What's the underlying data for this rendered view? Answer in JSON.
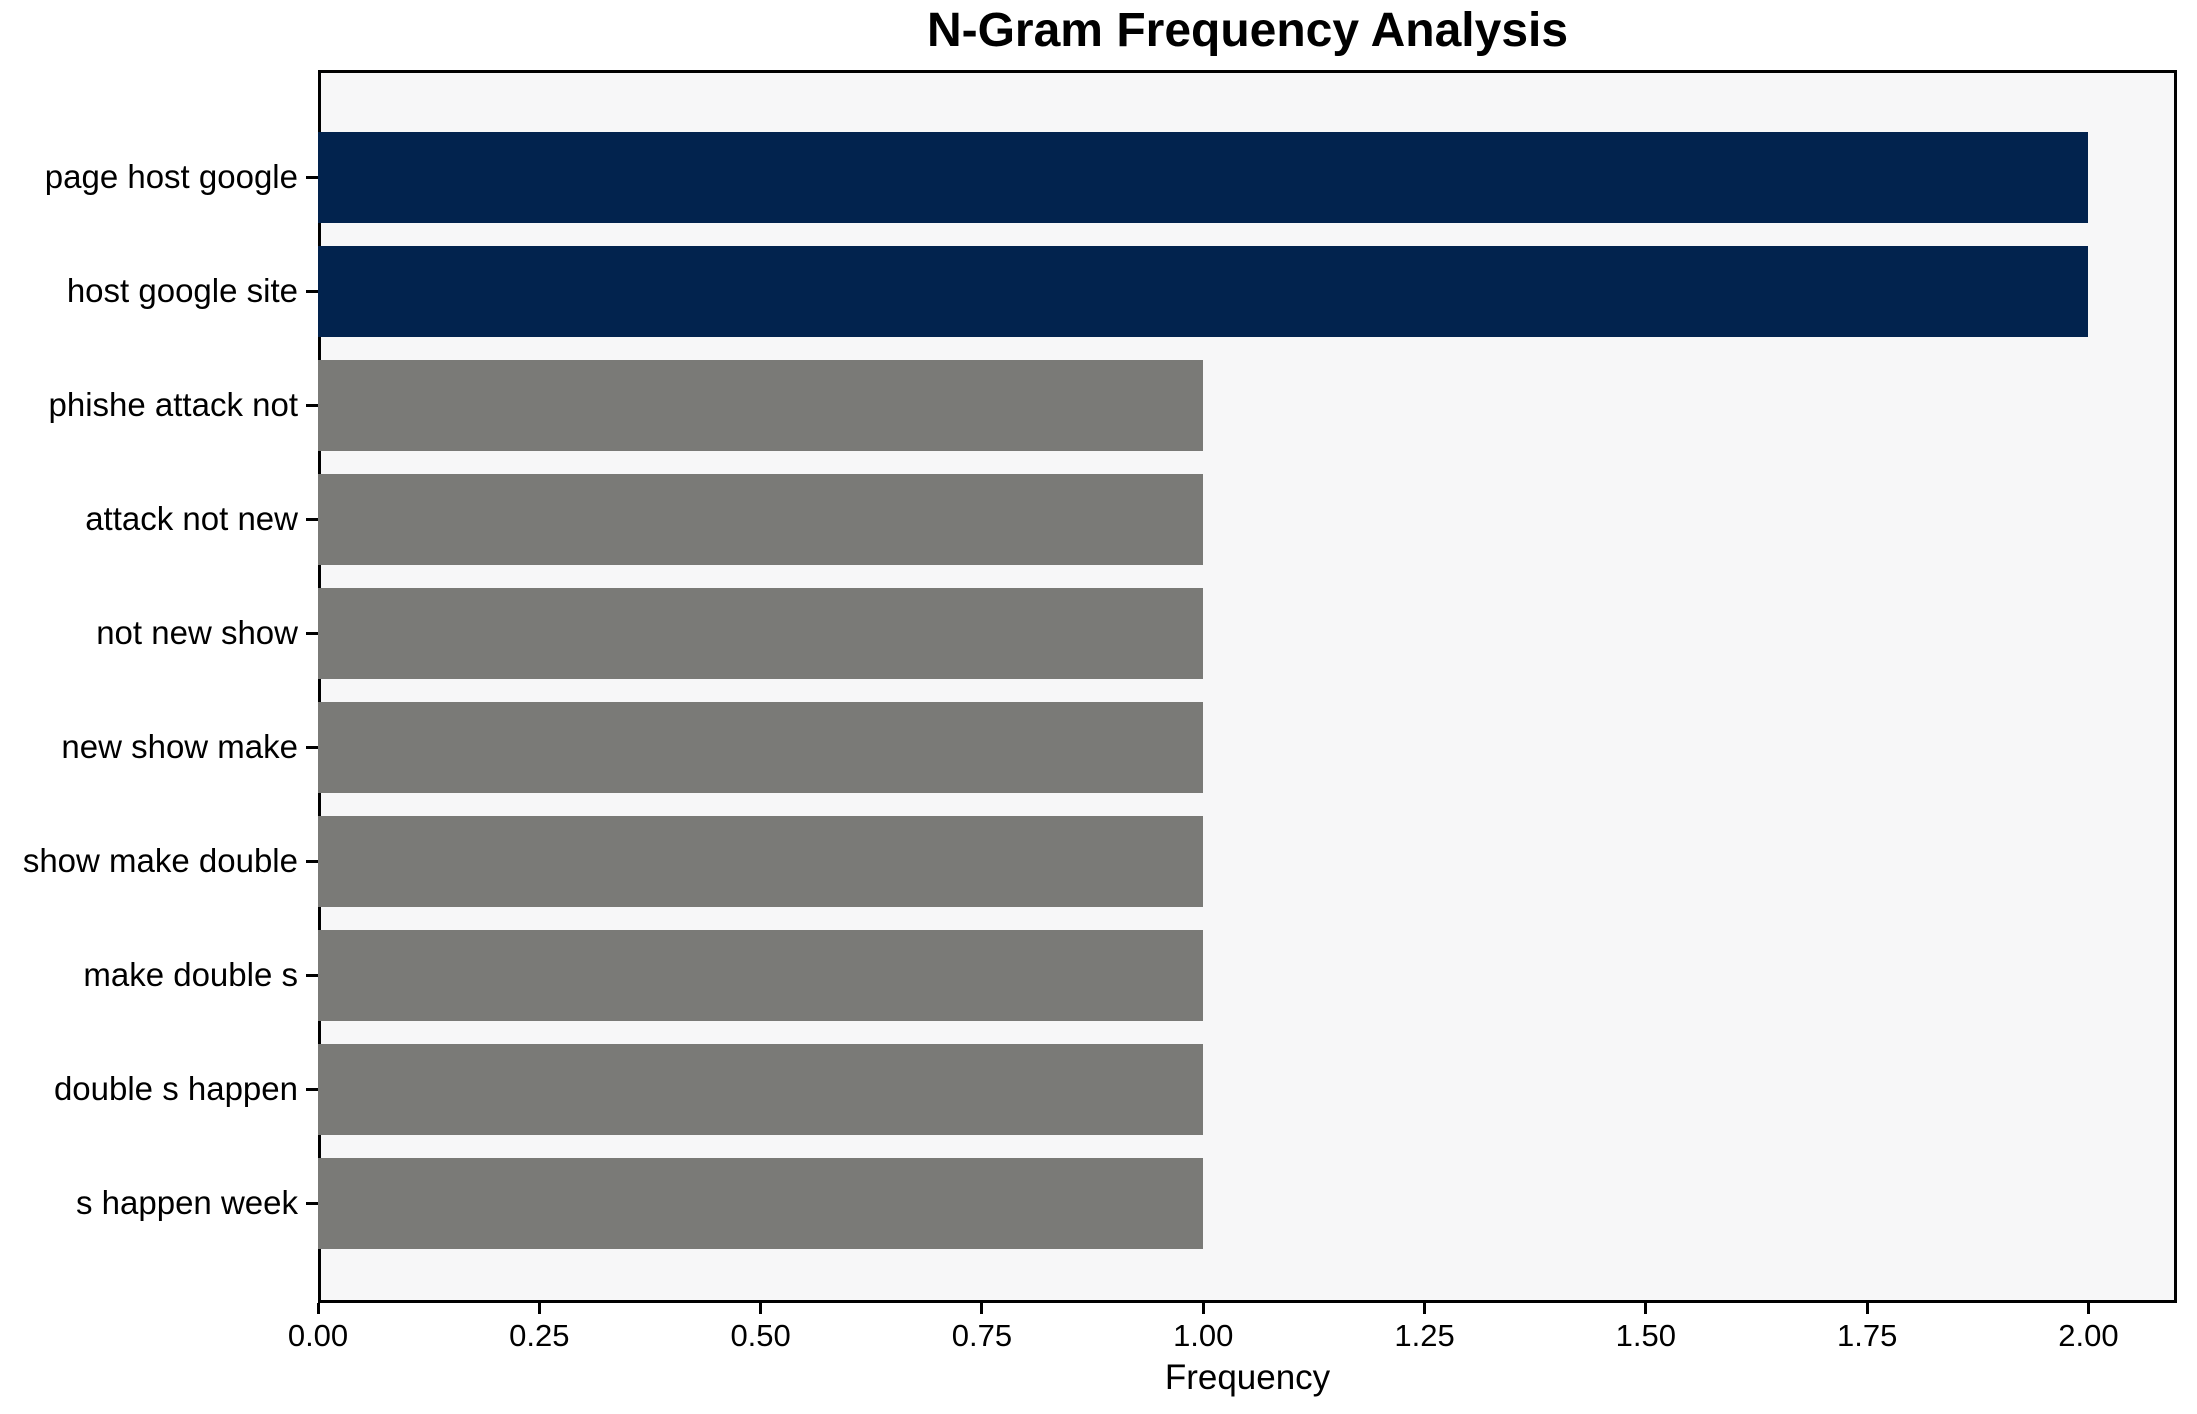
{
  "chart_data": {
    "type": "bar",
    "orientation": "horizontal",
    "title": "N-Gram Frequency Analysis",
    "xlabel": "Frequency",
    "categories": [
      "page host google",
      "host google site",
      "phishe attack not",
      "attack not new",
      "not new show",
      "new show make",
      "show make double",
      "make double s",
      "double s happen",
      "s happen week"
    ],
    "values": [
      2,
      2,
      1,
      1,
      1,
      1,
      1,
      1,
      1,
      1
    ],
    "bar_colors": [
      "#02234e",
      "#02234e",
      "#7a7a77",
      "#7a7a77",
      "#7a7a77",
      "#7a7a77",
      "#7a7a77",
      "#7a7a77",
      "#7a7a77",
      "#7a7a77"
    ],
    "colors": {
      "highlight": "#02234e",
      "default": "#7a7a77",
      "plot_background": "#f7f7f8",
      "figure_background": "#ffffff",
      "axis": "#000000",
      "text": "#000000"
    },
    "xlim": [
      0,
      2.1
    ],
    "xticks": [
      0,
      0.25,
      0.5,
      0.75,
      1.0,
      1.25,
      1.5,
      1.75,
      2.0
    ],
    "xtick_labels": [
      "0.00",
      "0.25",
      "0.50",
      "0.75",
      "1.00",
      "1.25",
      "1.50",
      "1.75",
      "2.00"
    ],
    "grid": false,
    "legend": null
  }
}
